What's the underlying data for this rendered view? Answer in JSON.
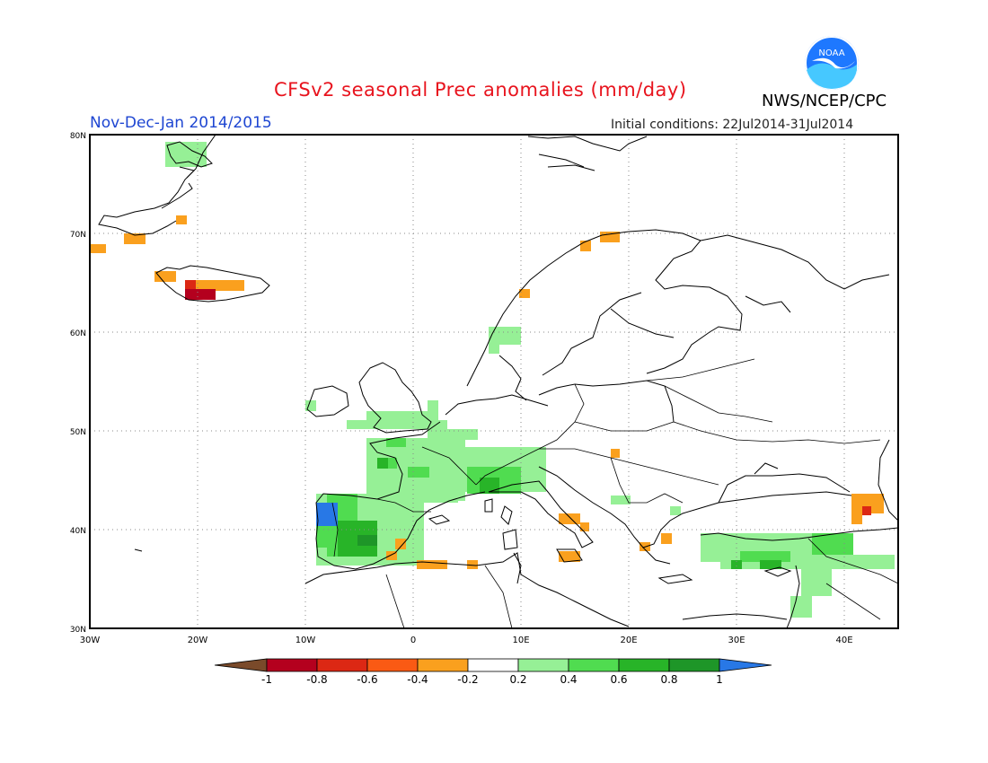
{
  "header": {
    "title": "CFSv2 seasonal Prec anomalies (mm/day)",
    "period": "Nov-Dec-Jan 2014/2015",
    "initial_conditions": "Initial conditions: 22Jul2014-31Jul2014",
    "agency": "NWS/NCEP/CPC",
    "logo_text": "NOAA"
  },
  "map": {
    "region": "Europe",
    "lon_range": [
      -30,
      45
    ],
    "lat_range": [
      30,
      80
    ],
    "lon_ticks": [
      "30W",
      "20W",
      "10W",
      "0",
      "10E",
      "20E",
      "30E",
      "40E"
    ],
    "lat_ticks": [
      "30N",
      "40N",
      "50N",
      "60N",
      "70N",
      "80N"
    ],
    "grid": "dotted"
  },
  "legend": {
    "labels": [
      "-1",
      "-0.8",
      "-0.6",
      "-0.4",
      "-0.2",
      "0.2",
      "0.4",
      "0.6",
      "0.8",
      "1"
    ],
    "colors": [
      "#7a4a2a",
      "#b4001e",
      "#dc2814",
      "#fa5a14",
      "#faa01e",
      "#ffffff",
      "#96f096",
      "#50dc50",
      "#28b428",
      "#1e9628",
      "#2878e6"
    ]
  }
}
